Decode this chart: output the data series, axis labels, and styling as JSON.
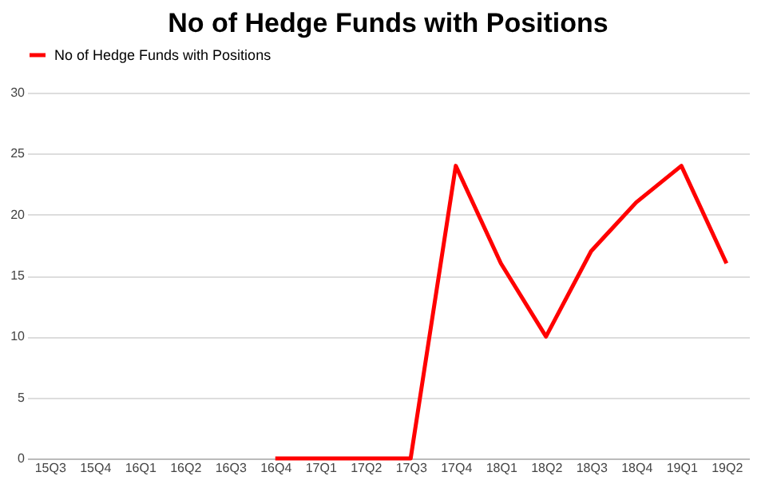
{
  "chart_data": {
    "type": "line",
    "title": "No of Hedge Funds with Positions",
    "categories": [
      "15Q3",
      "15Q4",
      "16Q1",
      "16Q2",
      "16Q3",
      "16Q4",
      "17Q1",
      "17Q2",
      "17Q3",
      "17Q4",
      "18Q1",
      "18Q2",
      "18Q3",
      "18Q4",
      "19Q1",
      "19Q2"
    ],
    "series": [
      {
        "name": "No of Hedge Funds with Positions",
        "color": "#ff0000",
        "values": [
          null,
          null,
          null,
          null,
          null,
          0,
          0,
          0,
          0,
          24,
          16,
          10,
          17,
          21,
          24,
          16
        ]
      }
    ],
    "ylim": [
      0,
      30
    ],
    "yticks": [
      0,
      5,
      10,
      15,
      20,
      25,
      30
    ],
    "grid": "y",
    "legend": "top",
    "marker": "none",
    "line_style": "solid"
  }
}
